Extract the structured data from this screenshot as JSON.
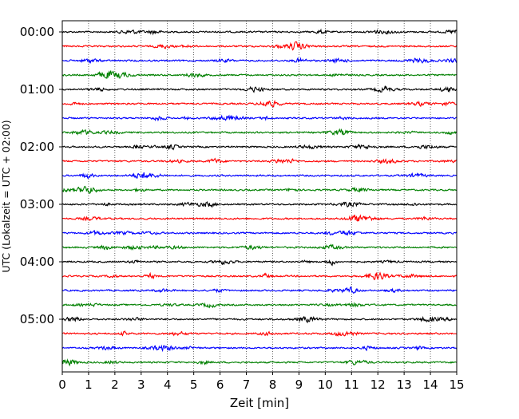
{
  "chart_data": {
    "type": "line",
    "xlabel": "Zeit  [min]",
    "ylabel": "UTC (Lokalzeit = UTC + 02:00)",
    "xlim": [
      0,
      15
    ],
    "xticks": [
      0,
      1,
      2,
      3,
      4,
      5,
      6,
      7,
      8,
      9,
      10,
      11,
      12,
      13,
      14,
      15
    ],
    "x_grid": true,
    "y_tick_labels": [
      "00:00",
      "01:00",
      "02:00",
      "03:00",
      "04:00",
      "05:00"
    ],
    "traces_per_hour": 4,
    "trace_count": 24,
    "trace_colors": [
      "#000000",
      "#ff0000",
      "#0000ff",
      "#008000"
    ]
  }
}
